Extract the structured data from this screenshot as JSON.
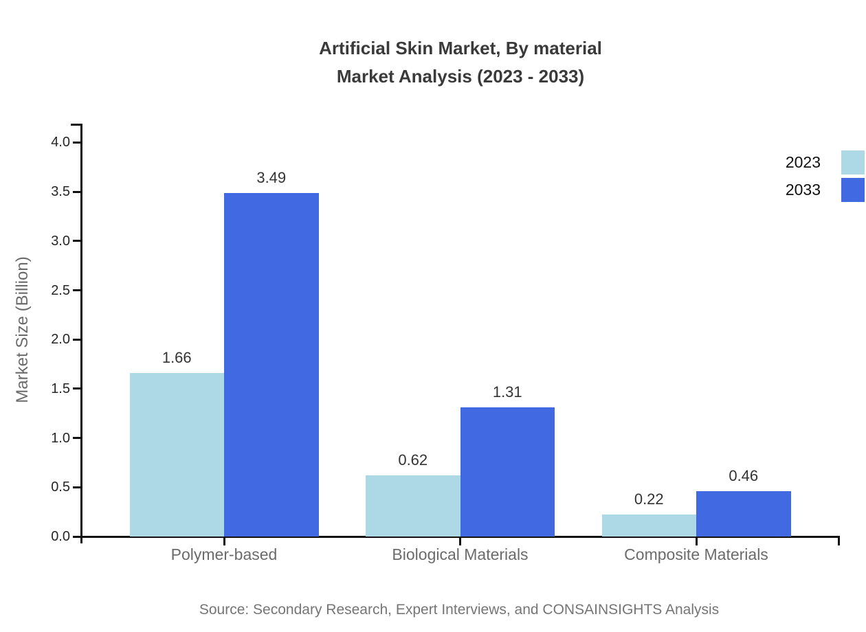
{
  "chart_data": {
    "type": "bar",
    "title_line1": "Artificial Skin Market, By material",
    "title_line2": "Market Analysis (2023 - 2033)",
    "title": "Artificial Skin Market, By material\nMarket Analysis (2023 - 2033)",
    "xlabel": "",
    "ylabel": "Market Size (Billion)",
    "categories": [
      "Polymer-based",
      "Biological Materials",
      "Composite Materials"
    ],
    "series": [
      {
        "name": "2023",
        "color": "#ADD8E6",
        "values": [
          1.66,
          0.62,
          0.22
        ]
      },
      {
        "name": "2033",
        "color": "#4169E1",
        "values": [
          3.49,
          1.31,
          0.46
        ]
      }
    ],
    "ylim": [
      0,
      4.0
    ],
    "y_ticks": [
      0.0,
      0.5,
      1.0,
      1.5,
      2.0,
      2.5,
      3.0,
      3.5,
      4.0
    ],
    "grid": false,
    "legend_position": "top-right-outside",
    "data_labels": true
  },
  "footer": {
    "source": "Source: Secondary Research, Expert Interviews, and CONSAINSIGHTS Analysis"
  }
}
